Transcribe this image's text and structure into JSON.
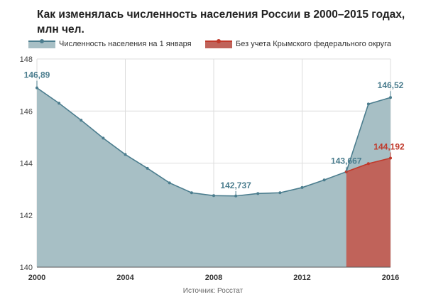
{
  "chart_data": {
    "type": "area",
    "title": "Как изменялась численность населения России в 2000–2015 годах, млн чел.",
    "source": "Источник: Росстат",
    "xlim": [
      2000,
      2016
    ],
    "ylim": [
      140,
      148
    ],
    "x_ticks": [
      "2000",
      "2004",
      "2008",
      "2012",
      "2016"
    ],
    "y_ticks": [
      "140",
      "142",
      "144",
      "146",
      "148"
    ],
    "grid": true,
    "legend_position": "top",
    "series": [
      {
        "name": "Численность населения на 1 января",
        "color": "#4b7d8e",
        "fill": "#a7bfc5",
        "x": [
          2000,
          2001,
          2002,
          2003,
          2004,
          2005,
          2006,
          2007,
          2008,
          2009,
          2010,
          2011,
          2012,
          2013,
          2014,
          2015,
          2016
        ],
        "y": [
          146.89,
          146.3,
          145.65,
          144.96,
          144.33,
          143.8,
          143.24,
          142.86,
          142.75,
          142.737,
          142.83,
          142.86,
          143.06,
          143.35,
          143.667,
          146.27,
          146.52
        ]
      },
      {
        "name": "Без учета Крымского федерального округа",
        "color": "#c0392b",
        "fill": "#c0635a",
        "x": [
          2014,
          2015,
          2016
        ],
        "y": [
          143.667,
          143.98,
          144.192
        ]
      }
    ],
    "annotations": [
      {
        "text": "146,89",
        "series": 0,
        "index": 0,
        "color": "#4b7d8e"
      },
      {
        "text": "142,737",
        "series": 0,
        "index": 9,
        "color": "#4b7d8e"
      },
      {
        "text": "143,667",
        "series": 0,
        "index": 14,
        "color": "#4b7d8e"
      },
      {
        "text": "146,52",
        "series": 0,
        "index": 16,
        "color": "#4b7d8e"
      },
      {
        "text": "144,192",
        "series": 1,
        "index": 2,
        "color": "#c0392b"
      }
    ]
  }
}
